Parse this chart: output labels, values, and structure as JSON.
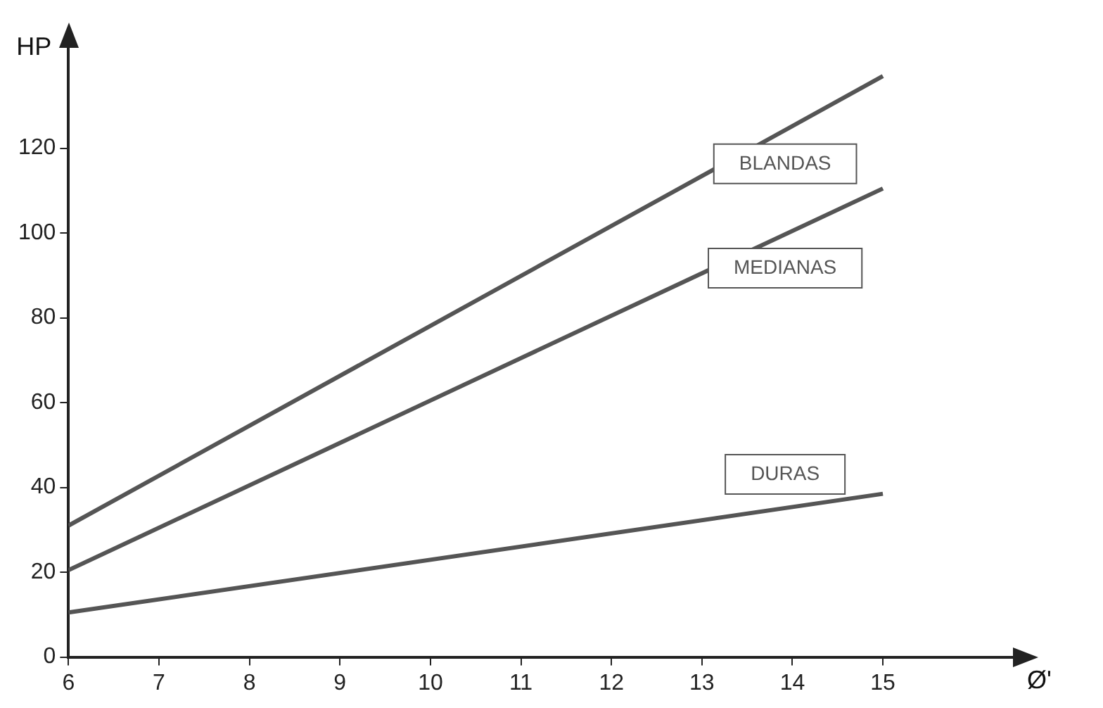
{
  "chart_data": {
    "type": "line",
    "xlabel": "Ø'",
    "ylabel": "HP",
    "x": [
      6,
      15
    ],
    "series": [
      {
        "name": "BLANDAS",
        "color": "#555555",
        "values": [
          31,
          137
        ]
      },
      {
        "name": "MEDIANAS",
        "color": "#555555",
        "values": [
          20.5,
          110.5
        ]
      },
      {
        "name": "DURAS",
        "color": "#555555",
        "values": [
          10.5,
          38.5
        ]
      }
    ],
    "xlim": [
      6,
      16.5
    ],
    "xticks": [
      6,
      7,
      8,
      9,
      10,
      11,
      12,
      13,
      14,
      15
    ],
    "ylim": [
      0,
      145
    ],
    "yticks": [
      0,
      20,
      40,
      60,
      80,
      100,
      120
    ],
    "grid": false,
    "legend": false,
    "marker": "none",
    "line_style": "solid"
  }
}
